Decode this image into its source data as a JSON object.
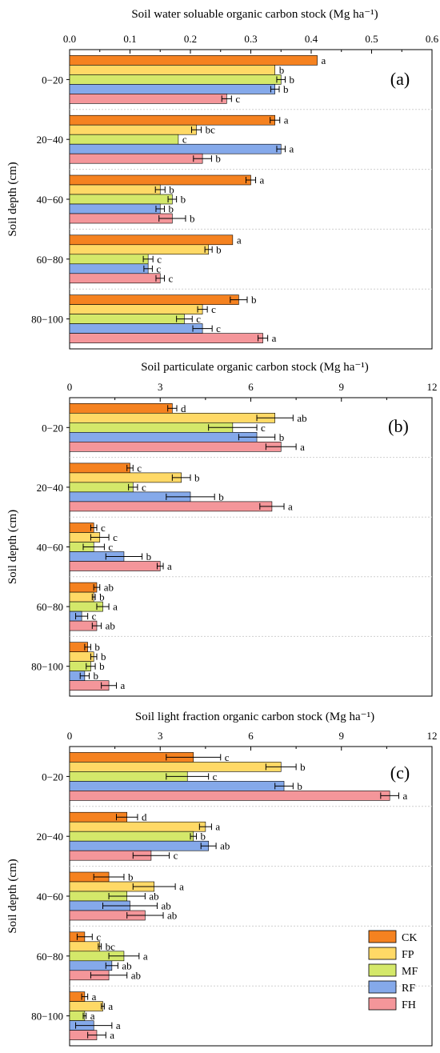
{
  "colors": {
    "CK": "#f58220",
    "FP": "#ffd966",
    "MF": "#d4e86a",
    "RF": "#85a9ea",
    "FH": "#f4969a"
  },
  "legend": [
    "CK",
    "FP",
    "MF",
    "RF",
    "FH"
  ],
  "chart_data": [
    {
      "type": "bar",
      "orientation": "horizontal",
      "panel_label": "(a)",
      "title": "Soil water soluable organic carbon stock (Mg ha⁻¹)",
      "ylabel": "Soil depth (cm)",
      "categories": [
        "0−20",
        "20−40",
        "40−60",
        "60−80",
        "80−100"
      ],
      "xlim": [
        0,
        0.6
      ],
      "xticks": [
        "0.0",
        "0.1",
        "0.2",
        "0.3",
        "0.4",
        "0.5",
        "0.6"
      ],
      "grid": false,
      "series": [
        {
          "name": "CK",
          "values": [
            0.41,
            0.34,
            0.3,
            0.27,
            0.28
          ],
          "errors": [
            0.0,
            0.008,
            0.008,
            0.0,
            0.014
          ],
          "letters": [
            "a",
            "a",
            "a",
            "a",
            "b"
          ]
        },
        {
          "name": "FP",
          "values": [
            0.34,
            0.21,
            0.15,
            0.23,
            0.22
          ],
          "errors": [
            0.0,
            0.008,
            0.008,
            0.006,
            0.008
          ],
          "letters": [
            "b",
            "bc",
            "b",
            "b",
            "c"
          ]
        },
        {
          "name": "MF",
          "values": [
            0.35,
            0.18,
            0.17,
            0.13,
            0.19
          ],
          "errors": [
            0.007,
            0.0,
            0.007,
            0.008,
            0.013
          ],
          "letters": [
            "b",
            "c",
            "b",
            "c",
            "c"
          ]
        },
        {
          "name": "RF",
          "values": [
            0.34,
            0.35,
            0.15,
            0.13,
            0.22
          ],
          "errors": [
            0.007,
            0.007,
            0.007,
            0.007,
            0.016
          ],
          "letters": [
            "b",
            "a",
            "b",
            "c",
            "c"
          ]
        },
        {
          "name": "FH",
          "values": [
            0.26,
            0.22,
            0.17,
            0.15,
            0.32
          ],
          "errors": [
            0.008,
            0.015,
            0.022,
            0.007,
            0.008
          ],
          "letters": [
            "c",
            "b",
            "b",
            "c",
            "a"
          ]
        }
      ]
    },
    {
      "type": "bar",
      "orientation": "horizontal",
      "panel_label": "(b)",
      "title": "Soil particulate organic carbon stock (Mg ha⁻¹)",
      "ylabel": "Soil depth (cm)",
      "categories": [
        "0−20",
        "20−40",
        "40−60",
        "60−80",
        "80−100"
      ],
      "xlim": [
        0,
        12
      ],
      "xticks": [
        "0",
        "3",
        "6",
        "9",
        "12"
      ],
      "grid": false,
      "series": [
        {
          "name": "CK",
          "values": [
            3.4,
            2.0,
            0.8,
            0.9,
            0.6
          ],
          "errors": [
            0.15,
            0.1,
            0.1,
            0.1,
            0.1
          ],
          "letters": [
            "d",
            "c",
            "c",
            "ab",
            "b"
          ]
        },
        {
          "name": "FP",
          "values": [
            6.8,
            3.7,
            1.0,
            0.8,
            0.8
          ],
          "errors": [
            0.6,
            0.3,
            0.3,
            0.05,
            0.1
          ],
          "letters": [
            "ab",
            "b",
            "c",
            "b",
            "b"
          ]
        },
        {
          "name": "MF",
          "values": [
            5.4,
            2.1,
            0.8,
            1.1,
            0.7
          ],
          "errors": [
            0.8,
            0.15,
            0.35,
            0.2,
            0.15
          ],
          "letters": [
            "c",
            "c",
            "c",
            "a",
            "b"
          ]
        },
        {
          "name": "RF",
          "values": [
            6.2,
            4.0,
            1.8,
            0.4,
            0.5
          ],
          "errors": [
            0.6,
            0.8,
            0.6,
            0.2,
            0.15
          ],
          "letters": [
            "b",
            "b",
            "b",
            "c",
            "b"
          ]
        },
        {
          "name": "FH",
          "values": [
            7.0,
            6.7,
            3.0,
            0.9,
            1.3
          ],
          "errors": [
            0.5,
            0.4,
            0.1,
            0.15,
            0.25
          ],
          "letters": [
            "a",
            "a",
            "a",
            "ab",
            "a"
          ]
        }
      ]
    },
    {
      "type": "bar",
      "orientation": "horizontal",
      "panel_label": "(c)",
      "title": "Soil light fraction organic carbon stock (Mg ha⁻¹)",
      "ylabel": "Soil depth (cm)",
      "categories": [
        "0−20",
        "20−40",
        "40−60",
        "60−80",
        "80−100"
      ],
      "xlim": [
        0,
        12
      ],
      "xticks": [
        "0",
        "3",
        "6",
        "9",
        "12"
      ],
      "grid": false,
      "legend_position": "bottom-right",
      "series": [
        {
          "name": "CK",
          "values": [
            4.1,
            1.9,
            1.3,
            0.5,
            0.5
          ],
          "errors": [
            0.9,
            0.35,
            0.5,
            0.25,
            0.1
          ],
          "letters": [
            "c",
            "d",
            "b",
            "c",
            "a"
          ]
        },
        {
          "name": "FP",
          "values": [
            7.0,
            4.5,
            2.8,
            1.0,
            1.1
          ],
          "errors": [
            0.5,
            0.2,
            0.7,
            0.05,
            0.05
          ],
          "letters": [
            "b",
            "a",
            "a",
            "bc",
            "a"
          ]
        },
        {
          "name": "MF",
          "values": [
            3.9,
            4.1,
            1.9,
            1.8,
            0.5
          ],
          "errors": [
            0.7,
            0.1,
            0.6,
            0.5,
            0.05
          ],
          "letters": [
            "c",
            "b",
            "ab",
            "a",
            "a"
          ]
        },
        {
          "name": "RF",
          "values": [
            7.1,
            4.6,
            2.0,
            1.4,
            0.8
          ],
          "errors": [
            0.3,
            0.25,
            0.9,
            0.2,
            0.6
          ],
          "letters": [
            "b",
            "ab",
            "ab",
            "ab",
            "a"
          ]
        },
        {
          "name": "FH",
          "values": [
            10.6,
            2.7,
            2.5,
            1.3,
            0.9
          ],
          "errors": [
            0.3,
            0.6,
            0.6,
            0.6,
            0.3
          ],
          "letters": [
            "a",
            "c",
            "ab",
            "ab",
            "a"
          ]
        }
      ]
    }
  ]
}
